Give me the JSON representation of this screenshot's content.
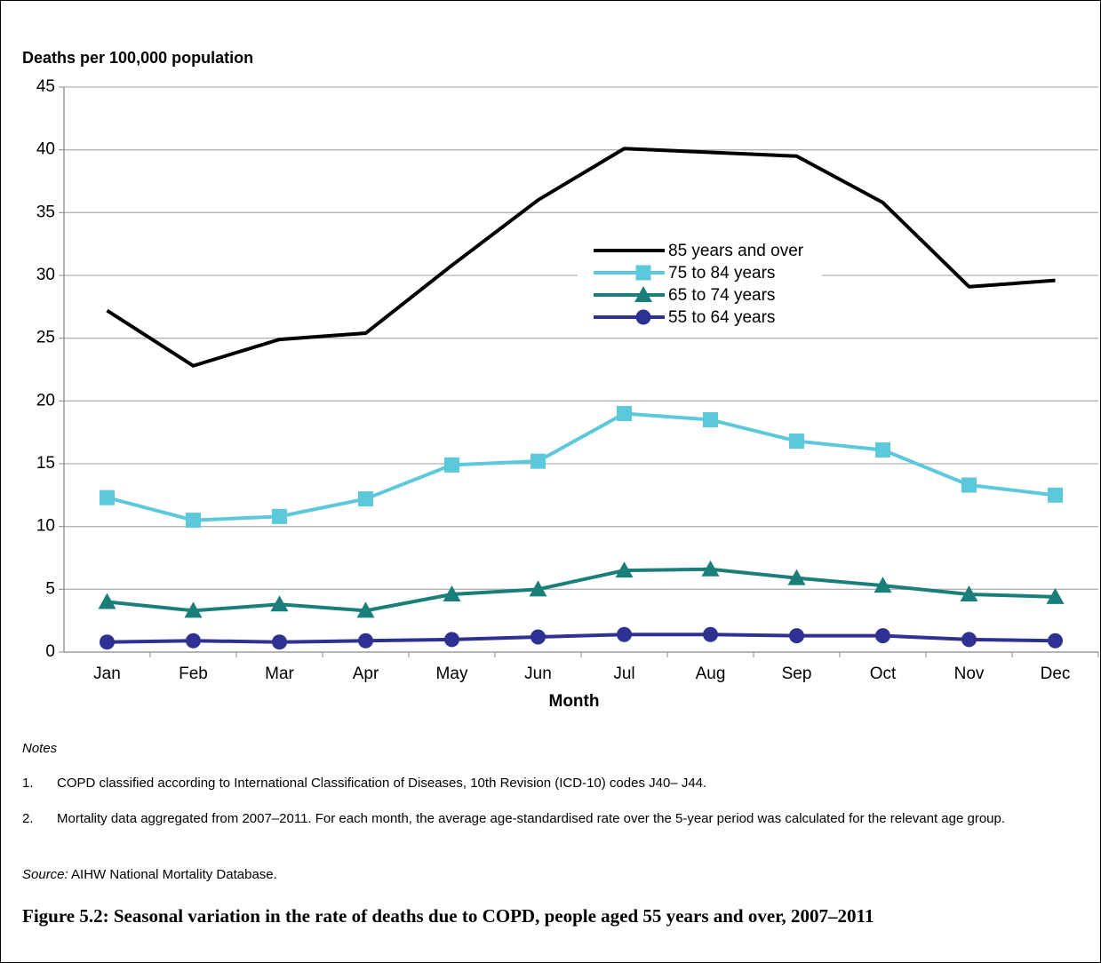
{
  "chart_data": {
    "type": "line",
    "title": "Figure 5.2: Seasonal variation in the rate of deaths due to COPD, people aged 55 years and over, 2007–2011",
    "y_label": "Deaths per 100,000 population",
    "x_label": "Month",
    "categories": [
      "Jan",
      "Feb",
      "Mar",
      "Apr",
      "May",
      "Jun",
      "Jul",
      "Aug",
      "Sep",
      "Oct",
      "Nov",
      "Dec"
    ],
    "ylim": [
      0,
      45
    ],
    "yticks": [
      0,
      5,
      10,
      15,
      20,
      25,
      30,
      35,
      40,
      45
    ],
    "grid": true,
    "legend": "center",
    "series": [
      {
        "name": "85 years and over",
        "color": "#000000",
        "marker": "none",
        "values": [
          27.2,
          22.8,
          24.9,
          25.4,
          30.8,
          36.0,
          40.1,
          39.8,
          39.5,
          35.8,
          29.1,
          29.6
        ]
      },
      {
        "name": "75 to 84 years",
        "color": "#5bc8dc",
        "marker": "square",
        "values": [
          12.3,
          10.5,
          10.8,
          12.2,
          14.9,
          15.2,
          19.0,
          18.5,
          16.8,
          16.1,
          13.3,
          12.5
        ]
      },
      {
        "name": "65 to 74 years",
        "color": "#1a7f7a",
        "marker": "triangle",
        "values": [
          4.0,
          3.3,
          3.8,
          3.3,
          4.6,
          5.0,
          6.5,
          6.6,
          5.9,
          5.3,
          4.6,
          4.4
        ]
      },
      {
        "name": "55 to 64 years",
        "color": "#2e3192",
        "marker": "circle",
        "values": [
          0.8,
          0.9,
          0.8,
          0.9,
          1.0,
          1.2,
          1.4,
          1.4,
          1.3,
          1.3,
          1.0,
          0.9
        ]
      }
    ],
    "notes_heading": "Notes",
    "notes": [
      {
        "number": "1.",
        "text": "COPD classified according to International Classification of Diseases, 10th Revision (ICD-10) codes J40– J44."
      },
      {
        "number": "2.",
        "text": "Mortality data aggregated from 2007–2011. For each month, the average age-standardised rate over the 5-year period was calculated for the relevant age group."
      }
    ],
    "source_label": "Source:",
    "source": "AIHW National Mortality Database."
  }
}
